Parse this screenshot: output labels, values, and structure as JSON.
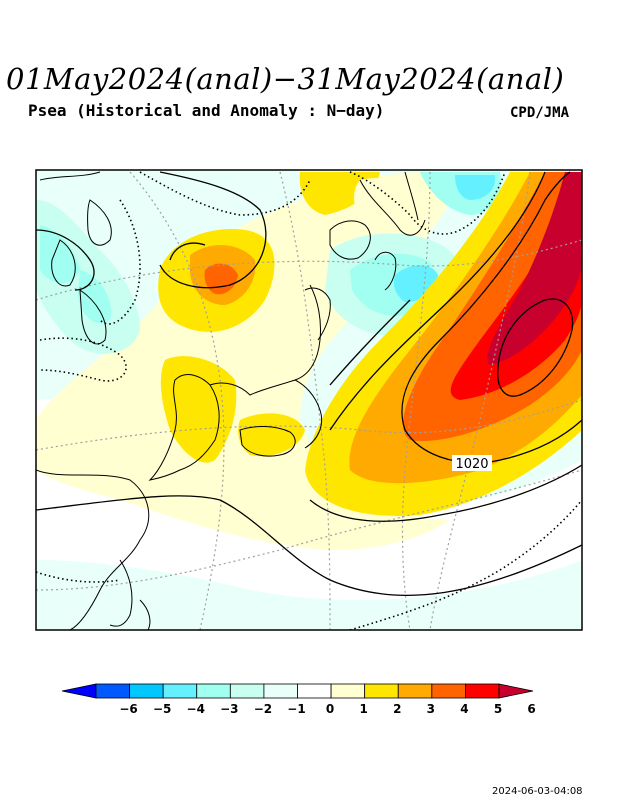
{
  "header": {
    "title": "01May2024(anal)−31May2024(anal)",
    "subtitle": "Psea (Historical and Anomaly : N−day)",
    "agency": "CPD/JMA"
  },
  "map": {
    "contour_label": "1020"
  },
  "legend": {
    "colors": [
      "#0000ff",
      "#005aff",
      "#00c8ff",
      "#64f0ff",
      "#a0fff0",
      "#c8fff0",
      "#e8fffa",
      "#ffffff",
      "#ffffd2",
      "#ffe600",
      "#ffaa00",
      "#ff6400",
      "#ff0000",
      "#c8002e"
    ],
    "ticks": [
      "−6",
      "−5",
      "−4",
      "−3",
      "−2",
      "−1",
      "0",
      "1",
      "2",
      "3",
      "4",
      "5",
      "6"
    ]
  },
  "footer": {
    "timestamp": "2024-06-03-04:08"
  }
}
